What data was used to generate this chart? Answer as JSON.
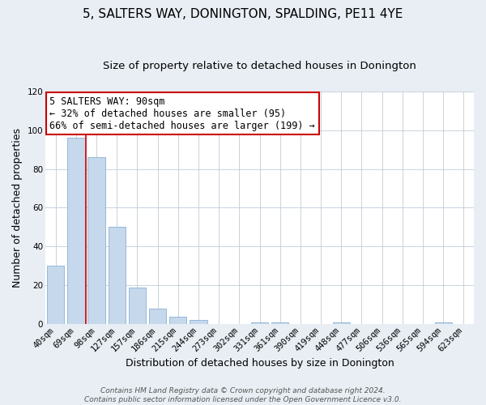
{
  "title": "5, SALTERS WAY, DONINGTON, SPALDING, PE11 4YE",
  "subtitle": "Size of property relative to detached houses in Donington",
  "xlabel": "Distribution of detached houses by size in Donington",
  "ylabel": "Number of detached properties",
  "bar_labels": [
    "40sqm",
    "69sqm",
    "98sqm",
    "127sqm",
    "157sqm",
    "186sqm",
    "215sqm",
    "244sqm",
    "273sqm",
    "302sqm",
    "331sqm",
    "361sqm",
    "390sqm",
    "419sqm",
    "448sqm",
    "477sqm",
    "506sqm",
    "536sqm",
    "565sqm",
    "594sqm",
    "623sqm"
  ],
  "bar_values": [
    30,
    96,
    86,
    50,
    19,
    8,
    4,
    2,
    0,
    0,
    1,
    1,
    0,
    0,
    1,
    0,
    0,
    0,
    0,
    1,
    0
  ],
  "bar_color": "#c5d8ec",
  "bar_edge_color": "#8ab0d0",
  "vline_color": "#cc0000",
  "annotation_title": "5 SALTERS WAY: 90sqm",
  "annotation_line1": "← 32% of detached houses are smaller (95)",
  "annotation_line2": "66% of semi-detached houses are larger (199) →",
  "annotation_box_color": "#ffffff",
  "annotation_box_edge_color": "#cc0000",
  "ylim": [
    0,
    120
  ],
  "yticks": [
    0,
    20,
    40,
    60,
    80,
    100,
    120
  ],
  "footer_line1": "Contains HM Land Registry data © Crown copyright and database right 2024.",
  "footer_line2": "Contains public sector information licensed under the Open Government Licence v3.0.",
  "bg_color": "#e8eef4",
  "plot_bg_color": "#ffffff",
  "title_fontsize": 11,
  "subtitle_fontsize": 9.5,
  "axis_label_fontsize": 9,
  "tick_fontsize": 7.5,
  "annotation_fontsize": 8.5,
  "footer_fontsize": 6.5
}
